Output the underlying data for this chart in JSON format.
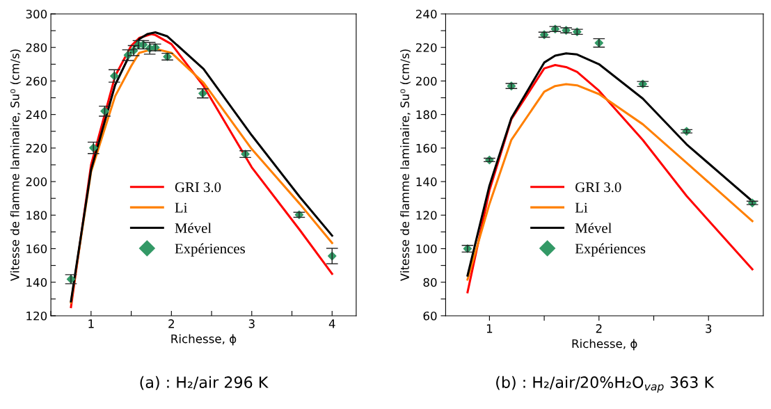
{
  "chart_data": [
    {
      "type": "line",
      "title": "(a) : H₂/air 296 K",
      "xlabel": "Richesse, ϕ",
      "ylabel": "Vitesse de flamme laminaire, Su⁰ (cm/s)",
      "xlim": [
        0.5,
        4.3
      ],
      "xticks": [
        {
          "value": 0.5,
          "label": null
        },
        1,
        {
          "value": 1.5,
          "label": null
        },
        2,
        {
          "value": 2.5,
          "label": null
        },
        3,
        {
          "value": 3.5,
          "label": null
        },
        4
      ],
      "ylim": [
        120,
        300
      ],
      "yticks": [
        120,
        {
          "value": 130,
          "label": null
        },
        140,
        {
          "value": 150,
          "label": null
        },
        160,
        {
          "value": 170,
          "label": null
        },
        180,
        {
          "value": 190,
          "label": null
        },
        200,
        {
          "value": 210,
          "label": null
        },
        220,
        {
          "value": 230,
          "label": null
        },
        240,
        {
          "value": 250,
          "label": null
        },
        260,
        {
          "value": 270,
          "label": null
        },
        280,
        {
          "value": 290,
          "label": null
        },
        300
      ],
      "grid": false,
      "legend": "center",
      "series": [
        {
          "name": "GRI 3.0",
          "color": "#ff0000",
          "x": [
            0.75,
            1.0,
            1.3,
            1.5,
            1.6,
            1.75,
            1.8,
            2.0,
            2.4,
            3.0,
            3.6,
            4.0
          ],
          "values": [
            125.2,
            209.9,
            263,
            281,
            285.7,
            288,
            287.4,
            282,
            257,
            208.5,
            171,
            145
          ]
        },
        {
          "name": "Li",
          "color": "#ff7f00",
          "x": [
            0.75,
            1.0,
            1.3,
            1.5,
            1.6,
            1.75,
            1.8,
            2.0,
            2.4,
            3.0,
            3.6,
            4.0
          ],
          "values": [
            127.9,
            205.8,
            251,
            269,
            276.8,
            278.8,
            279.2,
            276.8,
            259,
            219.4,
            186.6,
            163.4
          ]
        },
        {
          "name": "Mével",
          "color": "#000000",
          "x": [
            0.75,
            1.0,
            1.3,
            1.5,
            1.6,
            1.7,
            1.8,
            1.95,
            2.4,
            3.0,
            3.6,
            4.0
          ],
          "values": [
            128.6,
            207,
            257.7,
            277.5,
            285,
            288,
            289,
            286.6,
            267.2,
            227.6,
            190.7,
            167.8
          ]
        },
        {
          "name": "Expériences",
          "type": "scatter",
          "marker": "diamond",
          "color": "#339966",
          "x": [
            0.75,
            1.03,
            1.17,
            1.29,
            1.46,
            1.53,
            1.59,
            1.65,
            1.73,
            1.8,
            1.95,
            2.39,
            2.92,
            3.59,
            4.0
          ],
          "values": [
            141.8,
            220.1,
            242,
            263,
            275.4,
            278.1,
            281.6,
            281.6,
            279.5,
            280,
            274.5,
            252.6,
            216.4,
            180.2,
            155.6
          ],
          "errors": [
            2.7,
            3.4,
            3,
            3.7,
            3.2,
            3,
            2.5,
            2.5,
            3.5,
            2,
            2,
            2.7,
            2,
            1.5,
            4.6
          ]
        }
      ]
    },
    {
      "type": "line",
      "title": "(b) : H₂/air/20%H₂O$_{vap}$ 363 K",
      "xlabel": "Richesse, ϕ",
      "ylabel": "Vitesse de flamme laminaire, Su⁰ (cm/s)",
      "xlim": [
        0.6,
        3.5
      ],
      "xticks": [
        1,
        {
          "value": 1.5,
          "label": null
        },
        2,
        {
          "value": 2.5,
          "label": null
        },
        3
      ],
      "ylim": [
        60,
        240
      ],
      "yticks": [
        60,
        {
          "value": 70,
          "label": null
        },
        80,
        {
          "value": 90,
          "label": null
        },
        100,
        {
          "value": 110,
          "label": null
        },
        120,
        {
          "value": 130,
          "label": null
        },
        140,
        {
          "value": 150,
          "label": null
        },
        160,
        {
          "value": 170,
          "label": null
        },
        180,
        {
          "value": 190,
          "label": null
        },
        200,
        {
          "value": 210,
          "label": null
        },
        220,
        {
          "value": 230,
          "label": null
        },
        240
      ],
      "grid": false,
      "legend": "center",
      "series": [
        {
          "name": "GRI 3.0",
          "color": "#ff0000",
          "x": [
            0.8,
            1.0,
            1.2,
            1.5,
            1.6,
            1.7,
            1.8,
            2.0,
            2.4,
            2.8,
            3.4
          ],
          "values": [
            74,
            134.8,
            177.2,
            207.5,
            209.5,
            208.3,
            205.4,
            194.2,
            164.8,
            131.4,
            87.7
          ]
        },
        {
          "name": "Li",
          "color": "#ff7f00",
          "x": [
            0.8,
            1.0,
            1.2,
            1.5,
            1.6,
            1.7,
            1.8,
            2.0,
            2.4,
            2.8,
            3.4
          ],
          "values": [
            81.6,
            126.7,
            164.9,
            193.6,
            197,
            198.1,
            197.4,
            192.2,
            174.2,
            151.2,
            116.4
          ]
        },
        {
          "name": "Mével",
          "color": "#000000",
          "x": [
            0.8,
            1.0,
            1.2,
            1.5,
            1.6,
            1.7,
            1.8,
            2.0,
            2.4,
            2.8,
            3.4
          ],
          "values": [
            84,
            137.6,
            177.9,
            211,
            215.1,
            216.5,
            215.8,
            210,
            189.5,
            162.2,
            128.3
          ]
        },
        {
          "name": "Expériences",
          "type": "scatter",
          "marker": "diamond",
          "color": "#339966",
          "x": [
            0.8,
            1.0,
            1.2,
            1.5,
            1.6,
            1.7,
            1.8,
            2.0,
            2.4,
            2.8,
            3.4
          ],
          "values": [
            100,
            152.9,
            197,
            227.6,
            231,
            230.2,
            229.3,
            222.7,
            198.2,
            170,
            127.3
          ],
          "errors": [
            2,
            1,
            1.5,
            1.5,
            1.5,
            1.5,
            1.5,
            2.5,
            1.5,
            1,
            1
          ]
        }
      ]
    }
  ]
}
